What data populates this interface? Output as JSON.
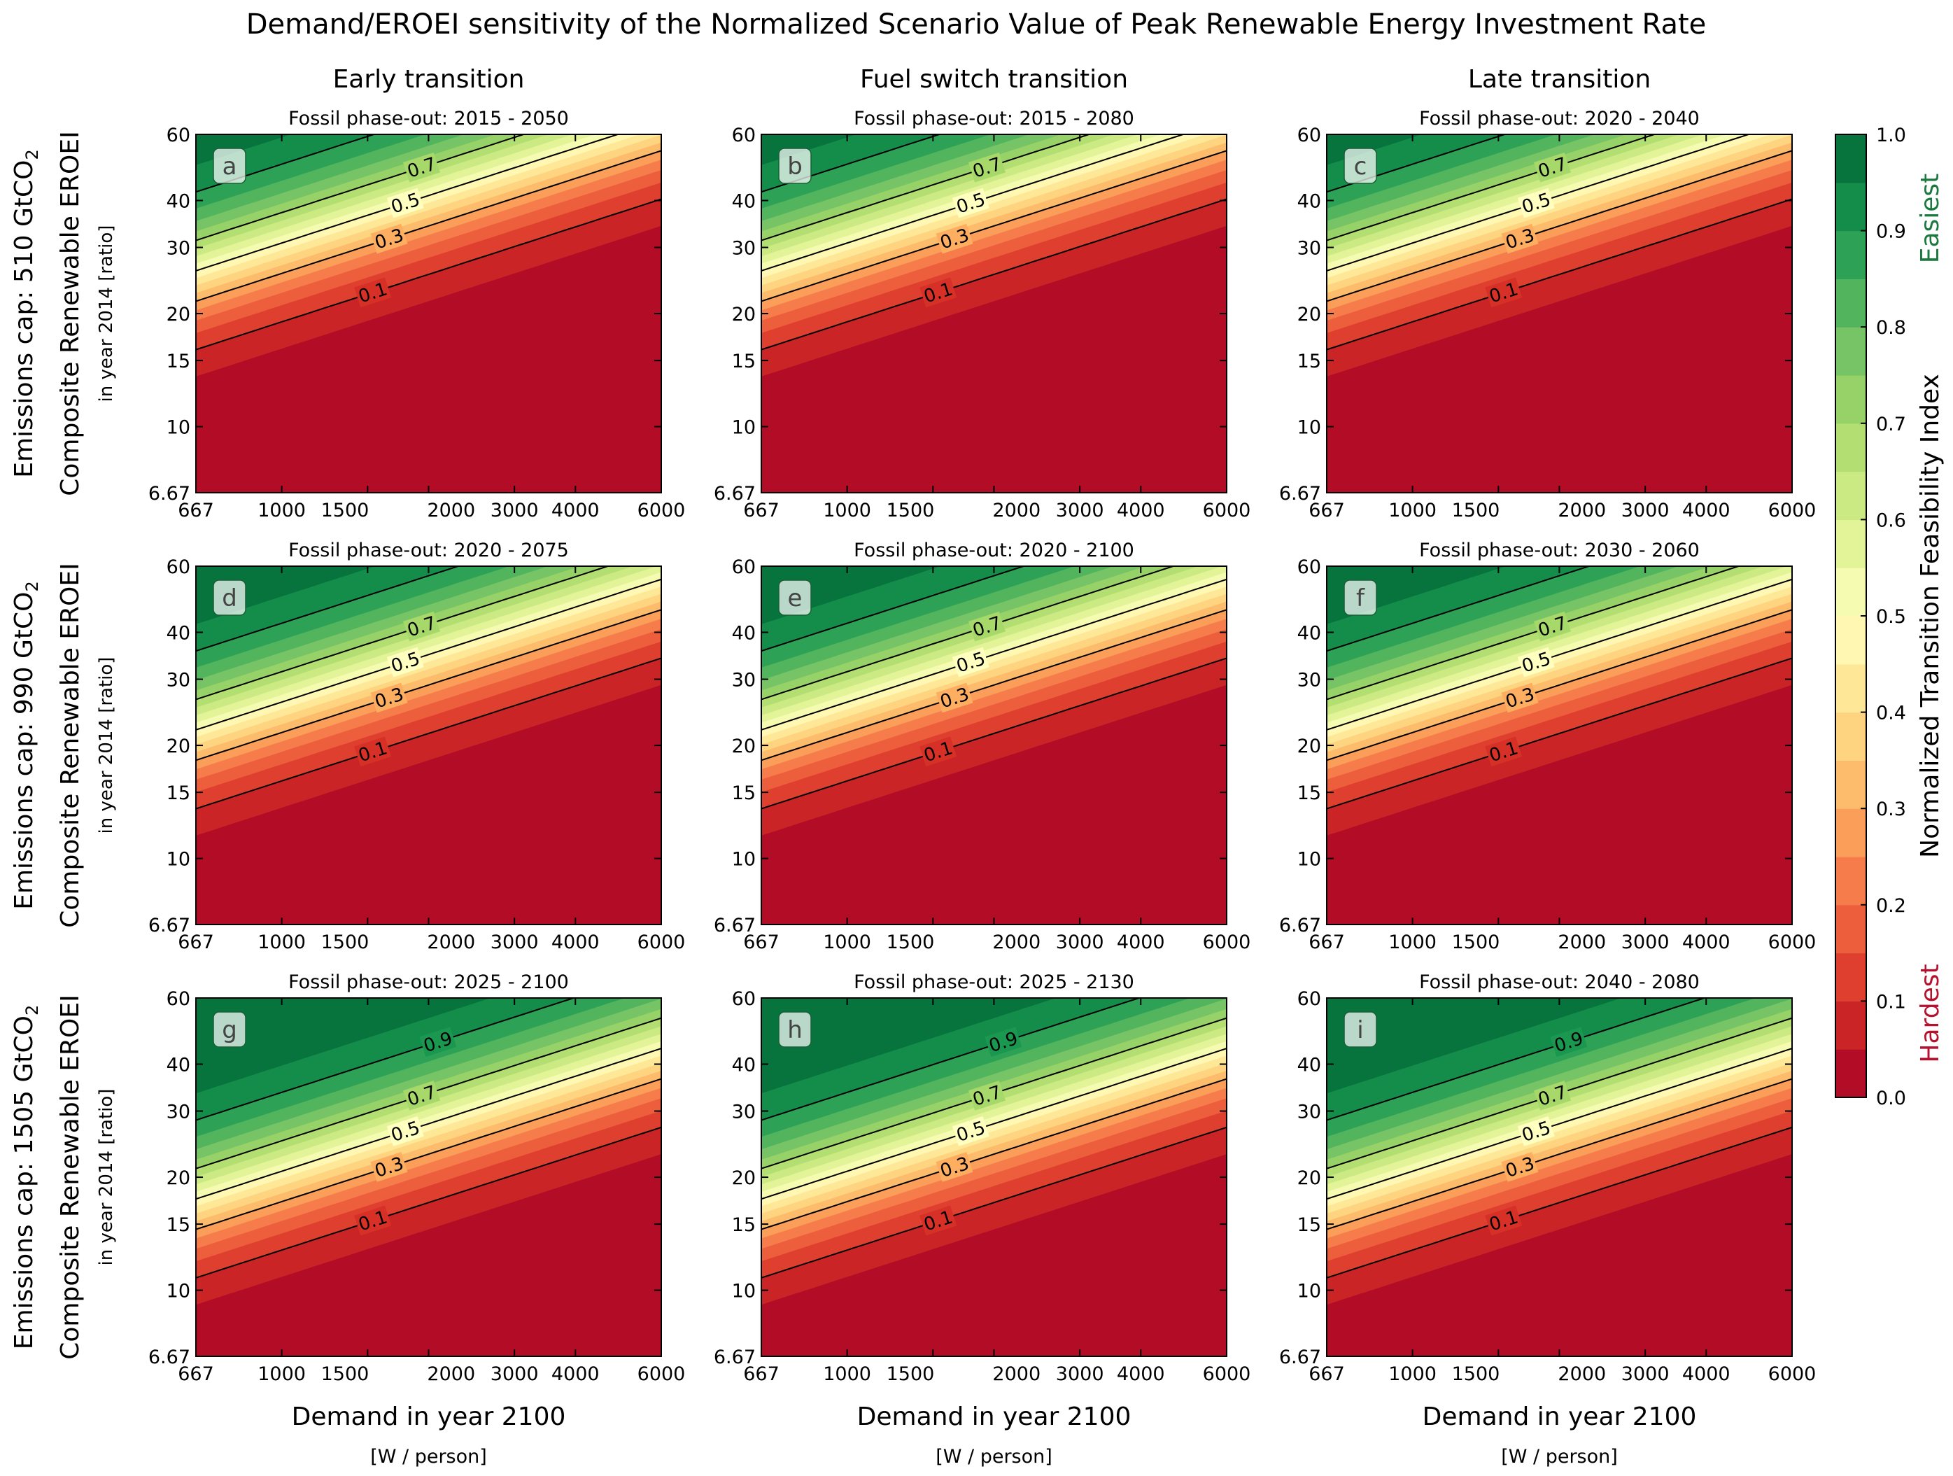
{
  "title": "Demand/EROEI sensitivity of the Normalized Scenario Value of Peak Renewable Energy Investment Rate",
  "columns": [
    "Early transition",
    "Fuel switch transition",
    "Late transition"
  ],
  "rows": [
    {
      "label": "Emissions cap: 510 GtCO",
      "cap": 510
    },
    {
      "label": "Emissions cap: 990 GtCO",
      "cap": 990
    },
    {
      "label": "Emissions cap: 1505 GtCO",
      "cap": 1505
    }
  ],
  "co2_subscript": "2",
  "ylabel": "Composite Renewable EROEI",
  "ylabel_sub": "in year 2014 [ratio]",
  "xlabel": "Demand in year 2100",
  "xlabel_sub": "[W / person]",
  "colorbar": {
    "label": "Normalized Transition Feasibility Index",
    "top_label": "Easiest",
    "bottom_label": "Hardest",
    "top_color": "#1a7a3e",
    "bottom_color": "#b4122e",
    "ticks": [
      "0.0",
      "0.1",
      "0.2",
      "0.3",
      "0.4",
      "0.5",
      "0.6",
      "0.7",
      "0.8",
      "0.9",
      "1.0"
    ],
    "levels": 20,
    "colormap": "RdYlGn"
  },
  "chart_data": [
    {
      "type": "heatmap",
      "id": "a",
      "subtitle": "Fossil phase-out: 2015 - 2050",
      "c0": 26,
      "c1": 20,
      "cap": 510
    },
    {
      "type": "heatmap",
      "id": "b",
      "subtitle": "Fossil phase-out: 2015 - 2080",
      "c0": 26,
      "c1": 20,
      "cap": 510
    },
    {
      "type": "heatmap",
      "id": "c",
      "subtitle": "Fossil phase-out: 2020 - 2040",
      "c0": 26,
      "c1": 20,
      "cap": 510
    },
    {
      "type": "heatmap",
      "id": "d",
      "subtitle": "Fossil phase-out: 2020 - 2075",
      "c0": 22,
      "c1": 19,
      "cap": 990
    },
    {
      "type": "heatmap",
      "id": "e",
      "subtitle": "Fossil phase-out: 2020 - 2100",
      "c0": 22,
      "c1": 19,
      "cap": 990
    },
    {
      "type": "heatmap",
      "id": "f",
      "subtitle": "Fossil phase-out: 2030 - 2060",
      "c0": 22,
      "c1": 19,
      "cap": 990
    },
    {
      "type": "heatmap",
      "id": "g",
      "subtitle": "Fossil phase-out: 2025 - 2100",
      "c0": 17.5,
      "c1": 18,
      "cap": 1505
    },
    {
      "type": "heatmap",
      "id": "h",
      "subtitle": "Fossil phase-out: 2025 - 2130",
      "c0": 17.5,
      "c1": 18,
      "cap": 1505
    },
    {
      "type": "heatmap",
      "id": "i",
      "subtitle": "Fossil phase-out: 2040 - 2080",
      "c0": 17.5,
      "c1": 18,
      "cap": 1505
    }
  ],
  "axes": {
    "x": {
      "scale": "log",
      "range": [
        667,
        6000
      ],
      "ticks": [
        667,
        1000,
        1500,
        2000,
        3000,
        4000,
        6000
      ],
      "tick_labels": [
        "667",
        "1000",
        "1500",
        "2000",
        "3000",
        "4000",
        "6000"
      ]
    },
    "y": {
      "scale": "log",
      "range": [
        6.67,
        60
      ],
      "ticks": [
        6.67,
        10,
        15,
        20,
        30,
        40,
        60
      ],
      "tick_labels": [
        "6.67",
        "10",
        "15",
        "20",
        "30",
        "40",
        "60"
      ]
    },
    "contour_levels": [
      0.1,
      0.3,
      0.5,
      0.7,
      0.9
    ],
    "contour_labels": [
      "0.1",
      "0.3",
      "0.5",
      "0.7",
      "0.9"
    ]
  }
}
